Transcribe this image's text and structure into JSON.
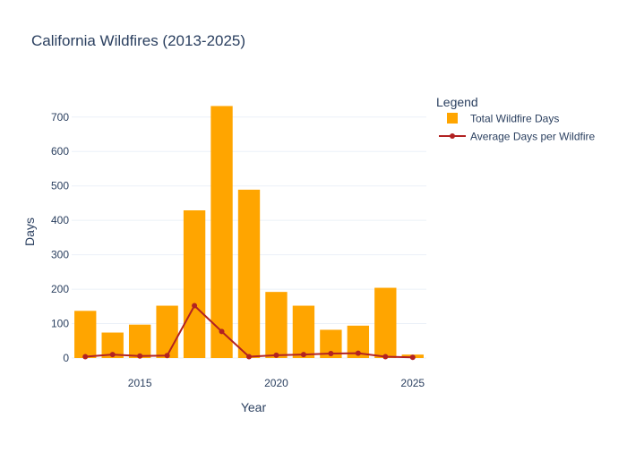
{
  "chart_data": {
    "type": "bar",
    "title": "California Wildfires (2013-2025)",
    "xlabel": "Year",
    "ylabel": "Days",
    "x": [
      2013,
      2014,
      2015,
      2016,
      2017,
      2018,
      2019,
      2020,
      2021,
      2022,
      2023,
      2024,
      2025
    ],
    "xlim": [
      2012.5,
      2025.5
    ],
    "ylim": [
      0,
      780
    ],
    "xticks": [
      2015,
      2020,
      2025
    ],
    "yticks": [
      0,
      100,
      200,
      300,
      400,
      500,
      600,
      700
    ],
    "grid": true,
    "series": [
      {
        "name": "Total Wildfire Days",
        "kind": "bar",
        "color": "#FFA500",
        "values": [
          137,
          74,
          97,
          152,
          429,
          732,
          489,
          192,
          152,
          82,
          94,
          204,
          10
        ]
      },
      {
        "name": "Average Days per Wildfire",
        "kind": "line",
        "color": "#B22222",
        "values": [
          4,
          10,
          6,
          7,
          152,
          77,
          4,
          8,
          10,
          13,
          14,
          4,
          2
        ]
      }
    ],
    "legend": {
      "title": "Legend",
      "placement": "right"
    }
  }
}
